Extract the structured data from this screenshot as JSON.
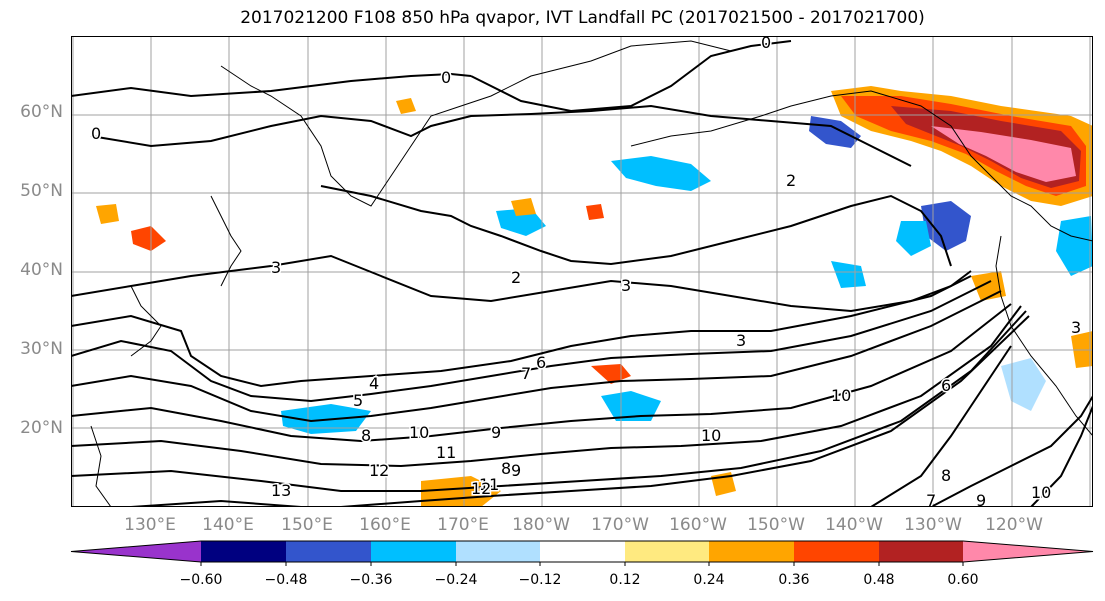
{
  "title": "2017021200 F108 850 hPa qvapor, IVT Landfall PC (2017021500 - 2017021700)",
  "map": {
    "lat_labels": [
      "60°N",
      "50°N",
      "40°N",
      "30°N",
      "20°N"
    ],
    "lon_labels": [
      "130°E",
      "140°E",
      "150°E",
      "160°E",
      "170°E",
      "180°W",
      "170°W",
      "160°W",
      "150°W",
      "140°W",
      "130°W",
      "120°W"
    ],
    "contour_labels": [
      "0",
      "0",
      "0",
      "2",
      "2",
      "3",
      "3",
      "3",
      "4",
      "5",
      "6",
      "7",
      "8",
      "8",
      "8",
      "9",
      "9",
      "10",
      "10",
      "10",
      "11",
      "11",
      "12",
      "12",
      "13",
      "3",
      "6",
      "7",
      "9",
      "10"
    ]
  },
  "colorbar": {
    "colors": [
      "#9933cc",
      "#000080",
      "#3355cc",
      "#00bfff",
      "#b0e0ff",
      "#ffffff",
      "#ffea80",
      "#ffa500",
      "#ff4500",
      "#b22222",
      "#ff88aa"
    ],
    "ticks": [
      "−0.60",
      "−0.48",
      "−0.36",
      "−0.24",
      "−0.12",
      "0.12",
      "0.24",
      "0.36",
      "0.48",
      "0.60"
    ]
  }
}
